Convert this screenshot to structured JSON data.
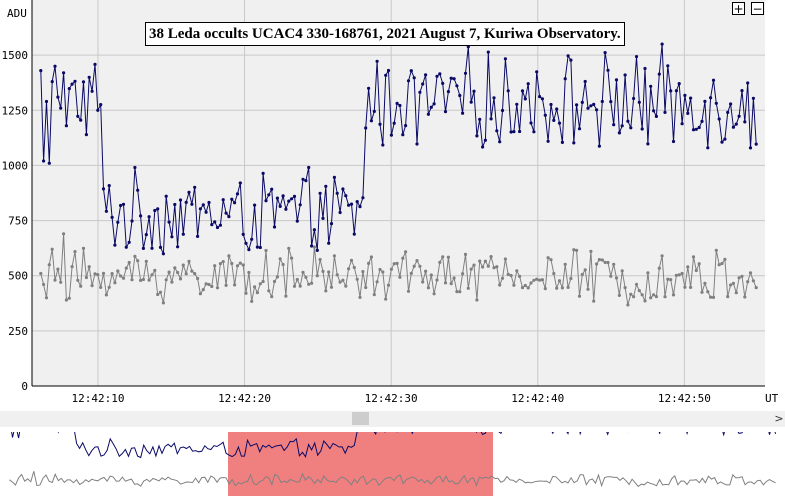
{
  "chart_data": {
    "type": "line",
    "title": "38 Leda occults UCAC4 330-168761, 2021 August 7, Kuriwa Observatory.",
    "ylabel": "ADU",
    "xlabel": "UT",
    "x_ticks": [
      "12:42:10",
      "12:42:20",
      "12:42:30",
      "12:42:40",
      "12:42:50"
    ],
    "y_ticks": [
      0,
      250,
      500,
      750,
      1000,
      1250,
      1500
    ],
    "ylim": [
      0,
      1750
    ],
    "xlim": [
      "12:42:05.5",
      "12:42:55.5"
    ],
    "grid": true,
    "occultation": {
      "start": "12:42:10.2",
      "end": "12:42:28.1",
      "baseline_level": 1290,
      "event_level": 780
    },
    "series": [
      {
        "color": "#0a0a66",
        "points": 252,
        "baseline": 1290,
        "event_level": 780,
        "event_start": "12:42:10.2",
        "event_end": "12:42:28.1",
        "sample_values": [
          1430,
          1020,
          1290,
          1010,
          1380,
          1450,
          1310,
          1260,
          1420,
          1180
        ]
      },
      {
        "color": "#808080",
        "points": 252,
        "baseline": 500,
        "sample_values": [
          510,
          460,
          400,
          550,
          620,
          480,
          530,
          470,
          690,
          390
        ]
      }
    ]
  },
  "controls": {
    "zoom_in_label": "+",
    "zoom_out_label": "−",
    "scroll_right_label": ">"
  },
  "overview": {
    "selection_color": "#f08080"
  }
}
